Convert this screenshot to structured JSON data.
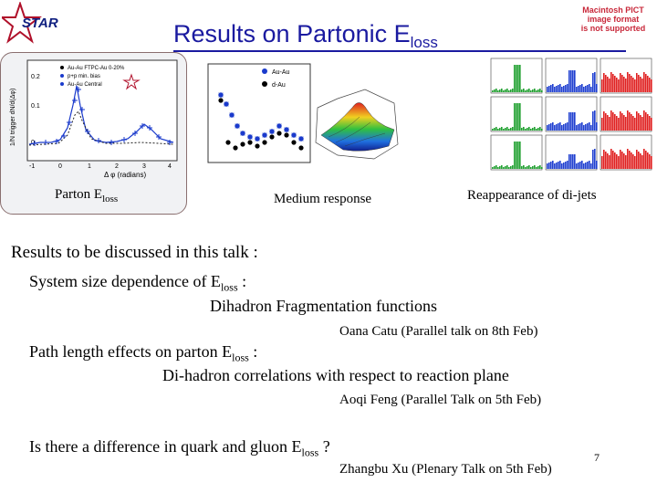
{
  "header": {
    "title": "Results on Partonic E",
    "title_sub": "loss",
    "pict_notice": [
      "Macintosh PICT",
      "image format",
      "is not supported"
    ],
    "logo_text": "STAR"
  },
  "figures": {
    "fig1_caption": "Parton E",
    "fig1_caption_sub": "loss",
    "fig1_legend": [
      "Au-Au FTPC-Au 0-20%",
      "p+p min. bias",
      "Au-Au Central"
    ],
    "fig1_ylabel": "1/N trigger dN/d(Δφ)",
    "fig1_xlabel": "Δ φ (radians)",
    "fig2_legend": [
      "Au-Au",
      "d-Au"
    ],
    "fig2_caption": "Medium response",
    "fig3_caption": "Reappearance of di-jets"
  },
  "body": {
    "heading": "Results to be discussed in this talk :",
    "item1_text": "System size dependence of E",
    "item1_sub": "loss",
    "item1_tail": " :",
    "item1_detail": "Dihadron Fragmentation functions",
    "item1_speaker": "Oana Catu (Parallel talk on 8th Feb)",
    "item2_text": "Path length effects on parton E",
    "item2_sub": "loss",
    "item2_tail": " :",
    "item2_detail": "Di-hadron correlations with respect to reaction plane",
    "item2_speaker": "Aoqi Feng (Parallel Talk on 5th Feb)",
    "item3_text": "Is there a difference in quark and gluon E",
    "item3_sub": "loss",
    "item3_tail": " ?",
    "item3_speaker": "Zhangbu Xu (Plenary Talk on 5th Feb)",
    "page_number": "7"
  },
  "colors": {
    "title": "#1a1aa0",
    "notice": "#c8283a",
    "panel_border": "#8a6f6f"
  }
}
